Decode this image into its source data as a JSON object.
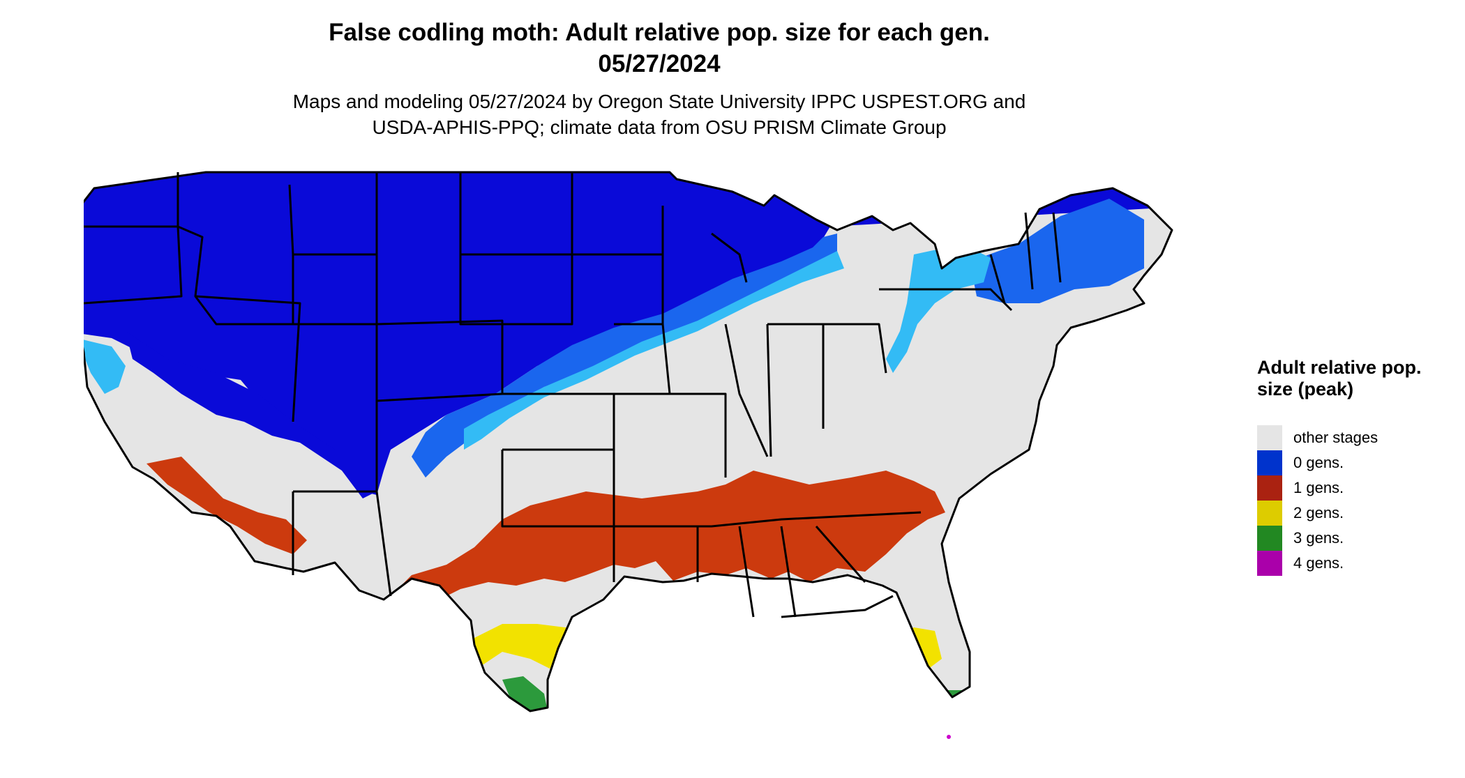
{
  "title_line1": "False codling moth: Adult relative pop. size for each gen.",
  "title_line2": "05/27/2024",
  "subtitle_line1": "Maps and modeling 05/27/2024 by Oregon State University IPPC USPEST.ORG and",
  "subtitle_line2": "USDA-APHIS-PPQ; climate data from OSU PRISM Climate Group",
  "legend": {
    "title": "Adult relative pop. size (peak)",
    "items": [
      {
        "label": "other stages",
        "color": "#e5e5e5"
      },
      {
        "label": "0 gens.",
        "color": "#0033cc"
      },
      {
        "label": "1 gens.",
        "color": "#aa2211"
      },
      {
        "label": "2 gens.",
        "color": "#ddcc00"
      },
      {
        "label": "3 gens.",
        "color": "#228822"
      },
      {
        "label": "4 gens.",
        "color": "#aa00aa"
      }
    ]
  },
  "map_colors": {
    "dark_blue": "#0a0ad8",
    "mid_blue": "#1a66ee",
    "light_blue": "#33bbf5",
    "grey": "#e5e5e5",
    "red": "#cc3a0e",
    "yellow": "#f2e200",
    "green": "#2c9a3c",
    "magenta": "#cc00cc"
  }
}
